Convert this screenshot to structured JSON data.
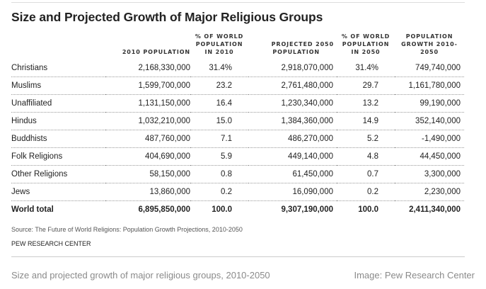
{
  "chart_data": {
    "type": "table",
    "title": "Size and Projected Growth of Major Religious Groups",
    "columns": [
      "",
      "2010 POPULATION",
      "% OF WORLD POPULATION IN 2010",
      "PROJECTED 2050 POPULATION",
      "% OF WORLD POPULATION IN 2050",
      "POPULATION GROWTH 2010-2050"
    ],
    "rows": [
      {
        "group": "Christians",
        "pop2010": "2,168,330,000",
        "pct2010": "31.4%",
        "pop2050": "2,918,070,000",
        "pct2050": "31.4%",
        "growth": "749,740,000"
      },
      {
        "group": "Muslims",
        "pop2010": "1,599,700,000",
        "pct2010": "23.2",
        "pop2050": "2,761,480,000",
        "pct2050": "29.7",
        "growth": "1,161,780,000"
      },
      {
        "group": "Unaffiliated",
        "pop2010": "1,131,150,000",
        "pct2010": "16.4",
        "pop2050": "1,230,340,000",
        "pct2050": "13.2",
        "growth": "99,190,000"
      },
      {
        "group": "Hindus",
        "pop2010": "1,032,210,000",
        "pct2010": "15.0",
        "pop2050": "1,384,360,000",
        "pct2050": "14.9",
        "growth": "352,140,000"
      },
      {
        "group": "Buddhists",
        "pop2010": "487,760,000",
        "pct2010": "7.1",
        "pop2050": "486,270,000",
        "pct2050": "5.2",
        "growth": "-1,490,000"
      },
      {
        "group": "Folk Religions",
        "pop2010": "404,690,000",
        "pct2010": "5.9",
        "pop2050": "449,140,000",
        "pct2050": "4.8",
        "growth": "44,450,000"
      },
      {
        "group": "Other Religions",
        "pop2010": "58,150,000",
        "pct2010": "0.8",
        "pop2050": "61,450,000",
        "pct2050": "0.7",
        "growth": "3,300,000"
      },
      {
        "group": "Jews",
        "pop2010": "13,860,000",
        "pct2010": "0.2",
        "pop2050": "16,090,000",
        "pct2050": "0.2",
        "growth": "2,230,000"
      },
      {
        "group": "World total",
        "pop2010": "6,895,850,000",
        "pct2010": "100.0",
        "pop2050": "9,307,190,000",
        "pct2050": "100.0",
        "growth": "2,411,340,000",
        "is_total": true
      }
    ]
  },
  "header": {
    "title": "Size and Projected Growth of Major Religious Groups",
    "col_pop2010": "2010 POPULATION",
    "col_pct2010": [
      "% OF WORLD",
      "POPULATION",
      "IN 2010"
    ],
    "col_pop2050": [
      "PROJECTED 2050",
      "POPULATION"
    ],
    "col_pct2050": [
      "% OF WORLD",
      "POPULATION",
      "IN 2050"
    ],
    "col_growth": [
      "POPULATION",
      "GROWTH 2010-",
      "2050"
    ]
  },
  "footer": {
    "source": "Source: The Future of World Religions: Population Growth Projections, 2010-2050",
    "organization": "PEW RESEARCH CENTER",
    "caption": "Size and projected growth of major religious groups, 2010-2050",
    "credit": "Image: Pew Research Center"
  }
}
